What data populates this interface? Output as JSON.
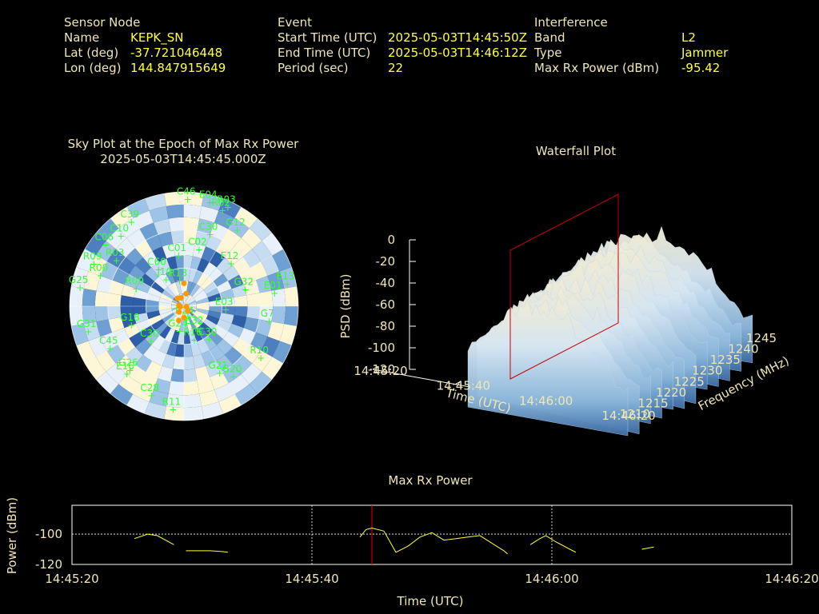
{
  "sensor": {
    "heading": "Sensor Node",
    "name_label": "Name",
    "name": "KEPK_SN",
    "lat_label": "Lat (deg)",
    "lat": "-37.721046448",
    "lon_label": "Lon (deg)",
    "lon": "144.847915649"
  },
  "event": {
    "heading": "Event",
    "start_label": "Start Time (UTC)",
    "start": "2025-05-03T14:45:50Z",
    "end_label": "End Time (UTC)",
    "end": "2025-05-03T14:46:12Z",
    "period_label": "Period (sec)",
    "period": "22"
  },
  "interference": {
    "heading": "Interference",
    "band_label": "Band",
    "band": "L2",
    "type_label": "Type",
    "type": "Jammer",
    "power_label": "Max Rx Power (dBm)",
    "power": "-95.42"
  },
  "skyplot": {
    "title": "Sky Plot at the Epoch of Max Rx Power",
    "subtitle": "2025-05-03T14:45:45.000Z",
    "label_color": "#33ff33",
    "marker_color": "#ff9900",
    "satellites": [
      {
        "id": "C46",
        "az": 2,
        "el": 84
      },
      {
        "id": "E04",
        "az": 14,
        "el": 84
      },
      {
        "id": "R03",
        "az": 24,
        "el": 85
      },
      {
        "id": "R02",
        "az": 22,
        "el": 81
      },
      {
        "id": "C39",
        "az": -32,
        "el": 78
      },
      {
        "id": "C10",
        "az": -42,
        "el": 74
      },
      {
        "id": "C06",
        "az": -52,
        "el": 78
      },
      {
        "id": "R03",
        "az": -56,
        "el": 64
      },
      {
        "id": "R09",
        "az": -65,
        "el": 78
      },
      {
        "id": "R00",
        "az": -70,
        "el": 70
      },
      {
        "id": "G25",
        "az": -80,
        "el": 83
      },
      {
        "id": "C60",
        "az": -35,
        "el": 35
      },
      {
        "id": "C01",
        "az": -6,
        "el": 40
      },
      {
        "id": "C02",
        "az": 15,
        "el": 46
      },
      {
        "id": "C30",
        "az": 20,
        "el": 60
      },
      {
        "id": "G12",
        "az": 35,
        "el": 73
      },
      {
        "id": "E13",
        "az": 78,
        "el": 83
      },
      {
        "id": "E01",
        "az": 82,
        "el": 72
      },
      {
        "id": "G32",
        "az": 75,
        "el": 50
      },
      {
        "id": "E12",
        "az": 48,
        "el": 50
      },
      {
        "id": "E03",
        "az": 95,
        "el": 33
      },
      {
        "id": "G7",
        "az": 100,
        "el": 68
      },
      {
        "id": "R10",
        "az": 124,
        "el": 73
      },
      {
        "id": "G20",
        "az": 145,
        "el": 68
      },
      {
        "id": "G21",
        "az": 152,
        "el": 60
      },
      {
        "id": "C30",
        "az": 143,
        "el": 33
      },
      {
        "id": "E32",
        "az": 152,
        "el": 20
      },
      {
        "id": "R16",
        "az": 163,
        "el": 28
      },
      {
        "id": "R24",
        "az": 170,
        "el": 10
      },
      {
        "id": "G24",
        "az": 190,
        "el": 20
      },
      {
        "id": "C30",
        "az": 223,
        "el": 38
      },
      {
        "id": "C45",
        "az": 240,
        "el": 67
      },
      {
        "id": "G31",
        "az": 255,
        "el": 78
      },
      {
        "id": "G26",
        "az": 220,
        "el": 66
      },
      {
        "id": "E16",
        "az": 220,
        "el": 70
      },
      {
        "id": "C28",
        "az": 200,
        "el": 75
      },
      {
        "id": "R11",
        "az": 186,
        "el": 82
      },
      {
        "id": "R09",
        "az": -70,
        "el": 40
      },
      {
        "id": "G18",
        "az": -110,
        "el": 44
      },
      {
        "id": "J10",
        "az": -34,
        "el": 25
      },
      {
        "id": "R13",
        "az": -10,
        "el": 20
      }
    ],
    "jammer_points": [
      {
        "az": -80,
        "el": 4
      },
      {
        "az": 140,
        "el": 5
      },
      {
        "az": 220,
        "el": 6
      },
      {
        "az": 260,
        "el": 3
      },
      {
        "az": 100,
        "el": 2
      },
      {
        "az": -40,
        "el": 8
      },
      {
        "az": 10,
        "el": 10
      },
      {
        "az": 180,
        "el": 9
      },
      {
        "az": 200,
        "el": 12
      },
      {
        "az": -20,
        "el": 7
      },
      {
        "az": 0,
        "el": 18
      }
    ]
  },
  "waterfall": {
    "title": "Waterfall Plot",
    "zlabel": "PSD (dBm)",
    "xlabel": "Time (UTC)",
    "ylabel": "Frequency (MHz)",
    "z_ticks": [
      "0",
      "-20",
      "-40",
      "-60",
      "-80",
      "-100",
      "-120"
    ],
    "time_ticks": [
      "14:45:20",
      "14:45:40",
      "14:46:00",
      "14:46:20"
    ],
    "freq_ticks": [
      "1210",
      "1215",
      "1220",
      "1225",
      "1230",
      "1235",
      "1240",
      "1245"
    ],
    "marker_color": "#cc0000"
  },
  "maxpower": {
    "title": "Max Rx Power",
    "ylabel": "Power (dBm)",
    "xlabel": "Time (UTC)",
    "line_color": "#ffff40",
    "marker_color": "#cc0000",
    "y_ticks": [
      "-100",
      "-120"
    ],
    "x_ticks": [
      "14:45:20",
      "14:45:40",
      "14:46:00",
      "14:46:20"
    ]
  },
  "chart_data": [
    {
      "type": "line",
      "title": "Max Rx Power",
      "xlabel": "Time (UTC)",
      "ylabel": "Power (dBm)",
      "xlim": [
        "14:45:20",
        "14:46:20"
      ],
      "ylim": [
        -120,
        -81
      ],
      "marker_time": "14:45:45",
      "segments": [
        [
          [
            "14:45:25.2",
            -103
          ],
          [
            "14:45:26.3",
            -100
          ],
          [
            "14:45:27.1",
            -101
          ],
          [
            "14:45:28.5",
            -107
          ]
        ],
        [
          [
            "14:45:29.5",
            -111
          ],
          [
            "14:45:31.5",
            -111
          ],
          [
            "14:45:32.5",
            -111.5
          ],
          [
            "14:45:33.0",
            -112
          ]
        ],
        [
          [
            "14:45:44.0",
            -102
          ],
          [
            "14:45:44.5",
            -97
          ],
          [
            "14:45:45.0",
            -96
          ],
          [
            "14:45:46.0",
            -98
          ],
          [
            "14:45:47.0",
            -112
          ],
          [
            "14:45:48.0",
            -108
          ],
          [
            "14:45:49.0",
            -102
          ],
          [
            "14:45:50.0",
            -99
          ],
          [
            "14:45:51.0",
            -104
          ],
          [
            "14:45:52.0",
            -103
          ],
          [
            "14:45:53.0",
            -102
          ],
          [
            "14:45:54.0",
            -101
          ],
          [
            "14:45:55.0",
            -106
          ],
          [
            "14:45:56.0",
            -111
          ],
          [
            "14:45:56.3",
            -113
          ]
        ],
        [
          [
            "14:45:56.3",
            -113
          ]
        ],
        [
          [
            "14:45:58.2",
            -107
          ],
          [
            "14:45:59.0",
            -103
          ],
          [
            "14:45:59.5",
            -101
          ],
          [
            "14:46:00.3",
            -105
          ],
          [
            "14:46:01.5",
            -110
          ],
          [
            "14:46:02.0",
            -112
          ]
        ],
        [
          [
            "14:46:07.5",
            -110
          ],
          [
            "14:46:08.5",
            -108.5
          ]
        ]
      ]
    },
    {
      "type": "heatmap",
      "title": "Waterfall Plot",
      "xlabel": "Time (UTC)",
      "ylabel": "Frequency (MHz)",
      "zlabel": "PSD (dBm)",
      "xlim": [
        "14:45:20",
        "14:46:20"
      ],
      "ylim": [
        1210,
        1245
      ],
      "zlim": [
        -120,
        0
      ],
      "peak_psd": -20
    },
    {
      "type": "scatter",
      "title": "Sky Plot at the Epoch of Max Rx Power",
      "subtitle": "2025-05-03T14:45:45.000Z"
    }
  ]
}
